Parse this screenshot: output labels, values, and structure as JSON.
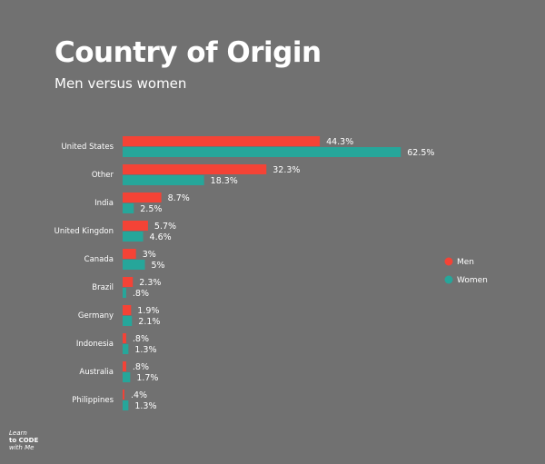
{
  "chart_data": {
    "type": "bar",
    "orientation": "horizontal",
    "title": "Country of Origin",
    "subtitle": "Men versus women",
    "categories": [
      "United States",
      "Other",
      "India",
      "United Kingdon",
      "Canada",
      "Brazil",
      "Germany",
      "Indonesia",
      "Australia",
      "Philippines"
    ],
    "series": [
      {
        "name": "Men",
        "color": "#f44336",
        "values": [
          44.3,
          32.3,
          8.7,
          5.7,
          3,
          2.3,
          1.9,
          0.8,
          0.8,
          0.4
        ],
        "labels": [
          "44.3%",
          "32.3%",
          "8.7%",
          "5.7%",
          "3%",
          "2.3%",
          "1.9%",
          ".8%",
          ".8%",
          ".4%"
        ]
      },
      {
        "name": "Women",
        "color": "#26a69a",
        "values": [
          62.5,
          18.3,
          2.5,
          4.6,
          5,
          0.8,
          2.1,
          1.3,
          1.7,
          1.3
        ],
        "labels": [
          "62.5%",
          "18.3%",
          "2.5%",
          "4.6%",
          "5%",
          ".8%",
          "2.1%",
          "1.3%",
          "1.7%",
          "1.3%"
        ]
      }
    ],
    "xlabel": "",
    "ylabel": "",
    "grid": false,
    "legend": "right"
  },
  "logo": {
    "line1": "Learn",
    "line2": "to CODE",
    "line3": "with Me"
  }
}
